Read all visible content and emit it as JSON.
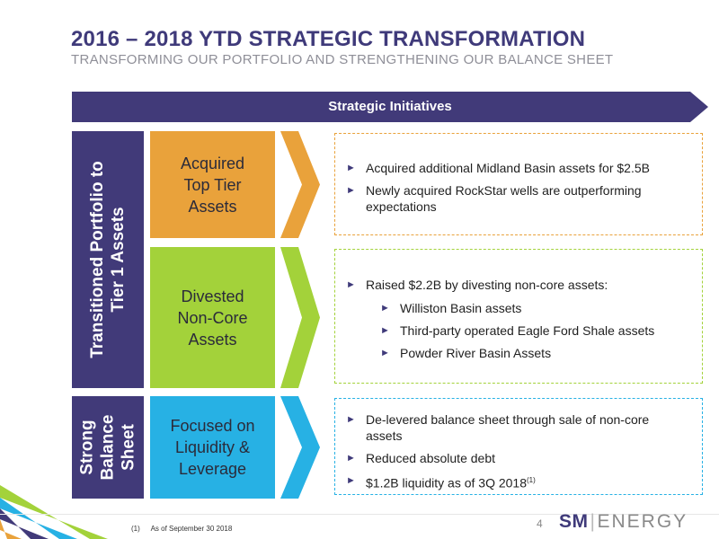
{
  "header": {
    "title": "2016 – 2018 YTD STRATEGIC TRANSFORMATION",
    "subtitle": "TRANSFORMING OUR PORTFOLIO AND STRENGTHENING OUR BALANCE SHEET"
  },
  "banner": {
    "label": "Strategic Initiatives"
  },
  "sections": {
    "transitioned": {
      "label_line1": "Transitioned Portfolio to",
      "label_line2": "Tier 1 Assets"
    },
    "balance": {
      "label_line1": "Strong",
      "label_line2": "Balance",
      "label_line3": "Sheet"
    }
  },
  "rows": [
    {
      "box_lines": [
        "Acquired",
        "Top Tier",
        "Assets"
      ],
      "box_color": "#e9a23b",
      "border_color": "#e9a23b",
      "bullets": [
        "Acquired additional Midland Basin assets for $2.5B",
        "Newly acquired RockStar wells are outperforming",
        "expectations"
      ]
    },
    {
      "box_lines": [
        "Divested",
        "Non-Core",
        "Assets"
      ],
      "box_color": "#a3d23a",
      "border_color": "#a3d23a",
      "bullets": [
        "Raised $2.2B by divesting non-core assets:"
      ],
      "sub_bullets": [
        "Williston Basin assets",
        "Third-party operated Eagle Ford Shale assets",
        "Powder River Basin Assets"
      ]
    },
    {
      "box_lines": [
        "Focused on",
        "Liquidity &",
        "Leverage"
      ],
      "box_color": "#27b1e4",
      "border_color": "#27b1e4",
      "bullets": [
        "De-levered balance sheet through sale of non-core",
        "assets",
        "Reduced absolute debt",
        "$1.2B liquidity as of 3Q 2018"
      ],
      "superscript": "(1)"
    }
  ],
  "bullet_marker": "►",
  "footer": {
    "footnote_num": "(1)",
    "footnote_text": "As of September 30 2018",
    "page_number": "4",
    "logo_sm": "SM",
    "logo_energy": "ENERGY"
  },
  "colors": {
    "primary": "#413a79",
    "orange": "#e9a23b",
    "green": "#a3d23a",
    "blue": "#27b1e4"
  }
}
